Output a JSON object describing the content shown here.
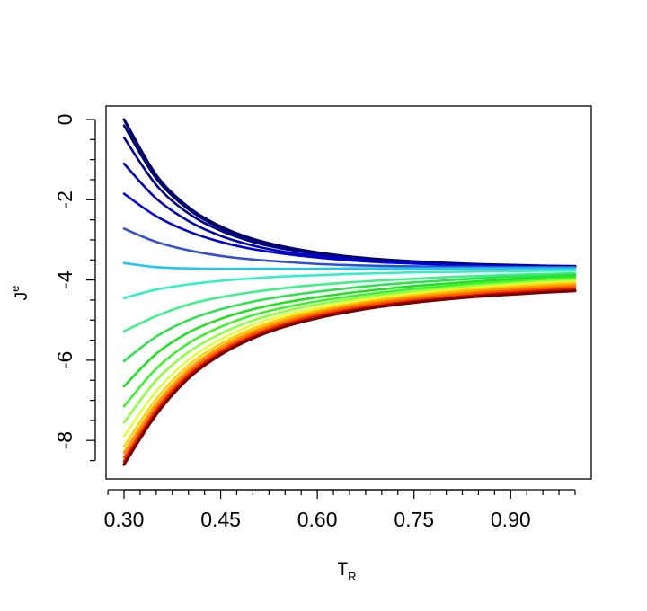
{
  "chart_data": {
    "type": "line",
    "title": "",
    "xlabel": {
      "main": "T",
      "subscript": "R"
    },
    "ylabel": {
      "main": "J",
      "superscript": "e"
    },
    "xlim": [
      0.3,
      1.0
    ],
    "ylim": [
      -8.6,
      0.0
    ],
    "x_ticks": [
      {
        "value": 0.3,
        "label": "0.30"
      },
      {
        "value": 0.45,
        "label": "0.45"
      },
      {
        "value": 0.6,
        "label": "0.60"
      },
      {
        "value": 0.75,
        "label": "0.75"
      },
      {
        "value": 0.9,
        "label": "0.90"
      }
    ],
    "y_ticks": [
      {
        "value": 0,
        "label": "0"
      },
      {
        "value": -2,
        "label": "-2"
      },
      {
        "value": -4,
        "label": "-4"
      },
      {
        "value": -6,
        "label": "-6"
      },
      {
        "value": -8,
        "label": "-8"
      }
    ],
    "grid": false,
    "legend": "none",
    "x": [
      0.3,
      0.35,
      0.4,
      0.45,
      0.5,
      0.55,
      0.6,
      0.65,
      0.7,
      0.75,
      0.8,
      0.85,
      0.9,
      0.95,
      1.0
    ],
    "series": [
      {
        "color": "#000060",
        "values": [
          0.0,
          -1.39,
          -2.19,
          -2.67,
          -2.98,
          -3.18,
          -3.32,
          -3.42,
          -3.49,
          -3.54,
          -3.58,
          -3.61,
          -3.63,
          -3.65,
          -3.66
        ]
      },
      {
        "color": "#000075",
        "values": [
          -0.15,
          -1.47,
          -2.24,
          -2.71,
          -3.0,
          -3.2,
          -3.33,
          -3.43,
          -3.5,
          -3.55,
          -3.59,
          -3.62,
          -3.64,
          -3.65,
          -3.66
        ]
      },
      {
        "color": "#000088",
        "values": [
          -0.45,
          -1.63,
          -2.34,
          -2.77,
          -3.05,
          -3.23,
          -3.35,
          -3.44,
          -3.51,
          -3.56,
          -3.59,
          -3.62,
          -3.64,
          -3.65,
          -3.66
        ]
      },
      {
        "color": "#0000b0",
        "values": [
          -1.1,
          -1.97,
          -2.53,
          -2.9,
          -3.14,
          -3.3,
          -3.4,
          -3.48,
          -3.54,
          -3.58,
          -3.61,
          -3.63,
          -3.65,
          -3.66,
          -3.67
        ]
      },
      {
        "color": "#0000d8",
        "values": [
          -1.85,
          -2.41,
          -2.79,
          -3.05,
          -3.23,
          -3.35,
          -3.44,
          -3.51,
          -3.56,
          -3.59,
          -3.62,
          -3.64,
          -3.65,
          -3.66,
          -3.67
        ]
      },
      {
        "color": "#3050d0",
        "values": [
          -2.72,
          -3.05,
          -3.26,
          -3.4,
          -3.49,
          -3.55,
          -3.6,
          -3.63,
          -3.65,
          -3.66,
          -3.67,
          -3.67,
          -3.68,
          -3.68,
          -3.68
        ]
      },
      {
        "color": "#20c8f0",
        "values": [
          -3.58,
          -3.68,
          -3.71,
          -3.72,
          -3.72,
          -3.72,
          -3.72,
          -3.71,
          -3.71,
          -3.71,
          -3.71,
          -3.71,
          -3.71,
          -3.71,
          -3.71
        ]
      },
      {
        "color": "#30f0c8",
        "values": [
          -4.45,
          -4.24,
          -4.11,
          -4.02,
          -3.96,
          -3.91,
          -3.88,
          -3.85,
          -3.83,
          -3.81,
          -3.8,
          -3.79,
          -3.78,
          -3.77,
          -3.76
        ]
      },
      {
        "color": "#40f08a",
        "values": [
          -5.28,
          -4.9,
          -4.61,
          -4.43,
          -4.3,
          -4.2,
          -4.12,
          -4.06,
          -4.01,
          -3.97,
          -3.93,
          -3.9,
          -3.87,
          -3.85,
          -3.83
        ]
      },
      {
        "color": "#30e050",
        "values": [
          -6.02,
          -5.41,
          -5.0,
          -4.73,
          -4.54,
          -4.4,
          -4.29,
          -4.2,
          -4.12,
          -4.06,
          -4.01,
          -3.96,
          -3.92,
          -3.89,
          -3.86
        ]
      },
      {
        "color": "#20e020",
        "values": [
          -6.65,
          -5.84,
          -5.31,
          -4.97,
          -4.73,
          -4.56,
          -4.43,
          -4.32,
          -4.23,
          -4.15,
          -4.09,
          -4.03,
          -3.98,
          -3.94,
          -3.9
        ]
      },
      {
        "color": "#40f030",
        "values": [
          -7.15,
          -6.21,
          -5.58,
          -5.17,
          -4.88,
          -4.68,
          -4.53,
          -4.41,
          -4.31,
          -4.22,
          -4.15,
          -4.08,
          -4.03,
          -3.98,
          -3.94
        ]
      },
      {
        "color": "#90ff40",
        "values": [
          -7.55,
          -6.5,
          -5.8,
          -5.34,
          -5.01,
          -4.78,
          -4.61,
          -4.48,
          -4.37,
          -4.28,
          -4.2,
          -4.13,
          -4.08,
          -4.03,
          -3.99
        ]
      },
      {
        "color": "#e0ff40",
        "values": [
          -7.9,
          -6.77,
          -5.99,
          -5.48,
          -5.12,
          -4.87,
          -4.69,
          -4.54,
          -4.43,
          -4.33,
          -4.25,
          -4.18,
          -4.12,
          -4.07,
          -4.03
        ]
      },
      {
        "color": "#ffd000",
        "values": [
          -8.15,
          -6.97,
          -6.13,
          -5.59,
          -5.21,
          -4.94,
          -4.75,
          -4.6,
          -4.48,
          -4.38,
          -4.29,
          -4.22,
          -4.16,
          -4.11,
          -4.07
        ]
      },
      {
        "color": "#ff9900",
        "values": [
          -8.3,
          -7.09,
          -6.23,
          -5.67,
          -5.28,
          -5.0,
          -4.8,
          -4.64,
          -4.52,
          -4.42,
          -4.34,
          -4.27,
          -4.21,
          -4.16,
          -4.12
        ]
      },
      {
        "color": "#ff5a00",
        "values": [
          -8.42,
          -7.19,
          -6.31,
          -5.74,
          -5.34,
          -5.06,
          -4.85,
          -4.69,
          -4.57,
          -4.47,
          -4.39,
          -4.32,
          -4.26,
          -4.21,
          -4.17
        ]
      },
      {
        "color": "#e01800",
        "values": [
          -8.52,
          -7.27,
          -6.38,
          -5.8,
          -5.4,
          -5.11,
          -4.9,
          -4.74,
          -4.62,
          -4.52,
          -4.44,
          -4.37,
          -4.31,
          -4.26,
          -4.22
        ]
      },
      {
        "color": "#7a0000",
        "values": [
          -8.6,
          -7.35,
          -6.45,
          -5.86,
          -5.45,
          -5.16,
          -4.95,
          -4.79,
          -4.66,
          -4.56,
          -4.48,
          -4.41,
          -4.36,
          -4.31,
          -4.27
        ]
      }
    ]
  }
}
